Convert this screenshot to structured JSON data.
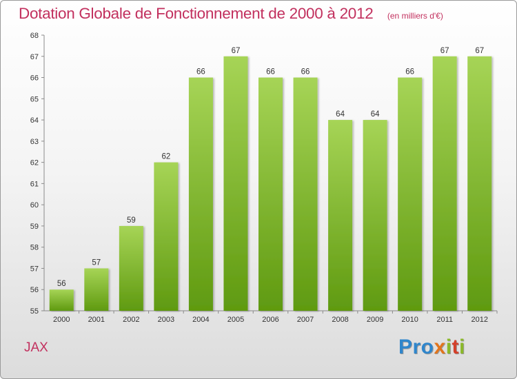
{
  "title": "Dotation Globale de Fonctionnement de 2000 à 2012",
  "subtitle": "(en milliers d'€)",
  "town": "JAX",
  "logo": {
    "parts": [
      "Pro",
      "x",
      "i",
      "t",
      "i"
    ]
  },
  "colors": {
    "title": "#c2305e",
    "bar_light": "#a6d456",
    "bar_dark": "#5f9a10"
  },
  "chart_data": {
    "type": "bar",
    "categories": [
      "2000",
      "2001",
      "2002",
      "2003",
      "2004",
      "2005",
      "2006",
      "2007",
      "2008",
      "2009",
      "2010",
      "2011",
      "2012"
    ],
    "values": [
      56,
      57,
      59,
      62,
      66,
      67,
      66,
      66,
      64,
      64,
      66,
      67,
      67
    ],
    "title": "Dotation Globale de Fonctionnement de 2000 à 2012",
    "subtitle": "(en milliers d'€)",
    "xlabel": "",
    "ylabel": "",
    "ylim": [
      55,
      68
    ],
    "yticks": [
      55,
      56,
      57,
      58,
      59,
      60,
      61,
      62,
      63,
      64,
      65,
      66,
      67,
      68
    ],
    "grid": false,
    "data_labels": true
  }
}
